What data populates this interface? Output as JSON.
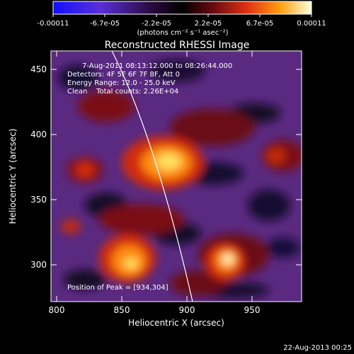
{
  "colorbar": {
    "tick_labels": [
      "-0.00011",
      "-6.7e-05",
      "-2.2e-05",
      "2.2e-05",
      "6.7e-05",
      "0.00011"
    ],
    "unit_label": "(photons cm⁻² s⁻¹ asec⁻²)"
  },
  "title": "Reconstructed RHESSI Image",
  "info": {
    "time_range": "7-Aug-2011 08:13:12.000 to 08:26:44.000",
    "detectors": "Detectors: 4F 5F 6F 7F 8F, Att 0",
    "energy_range": "Energy Range: 12.0 - 25.0 keV",
    "clean": "Clean    Total counts: 2.26E+04",
    "peak": "Position of Peak = [934,304]"
  },
  "axes": {
    "xlabel": "Heliocentric X (arcsec)",
    "ylabel": "Heliocentric Y (arcsec)",
    "x_ticks": [
      "800",
      "850",
      "900",
      "950"
    ],
    "y_ticks": [
      "450",
      "400",
      "350",
      "300"
    ]
  },
  "footer_date": "22-Aug-2013 00:25",
  "colors": {
    "background": "#000000",
    "axis": "#ffffff"
  }
}
